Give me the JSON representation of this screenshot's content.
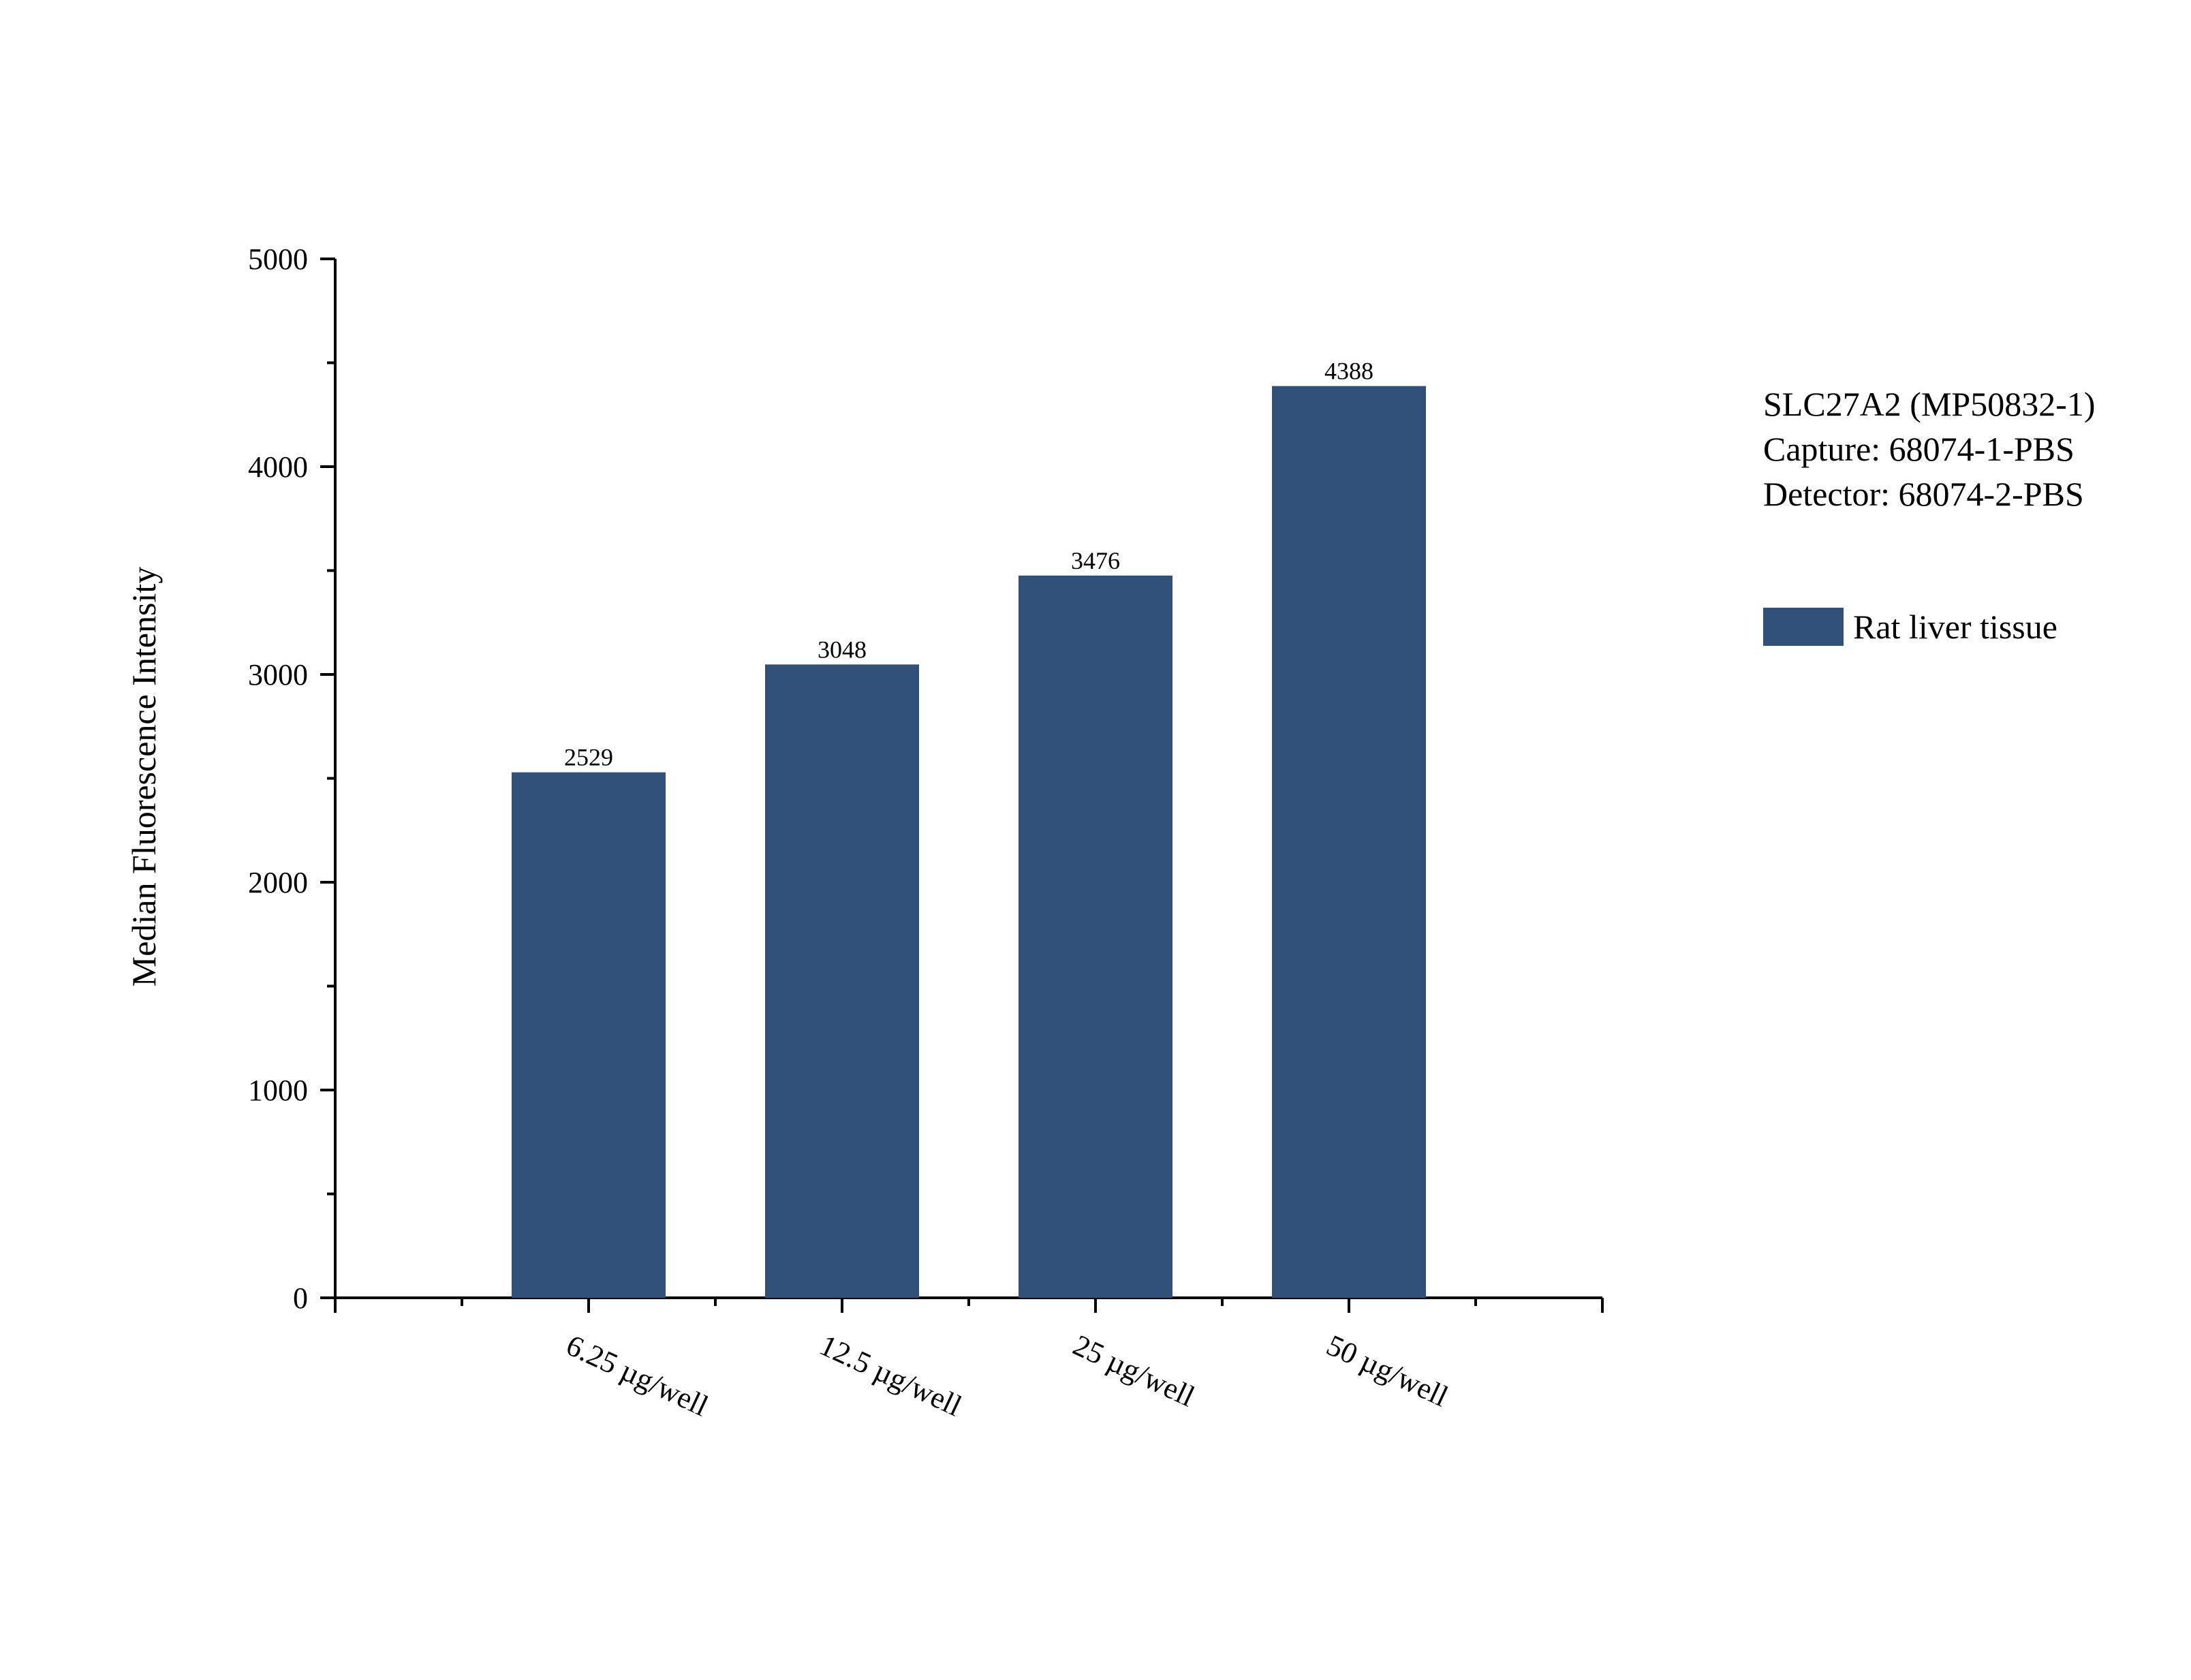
{
  "chart_data": {
    "type": "bar",
    "categories": [
      "6.25 µg/well",
      "12.5 µg/well",
      "25 µg/well",
      "50 µg/well"
    ],
    "series": [
      {
        "name": "Rat liver tissue",
        "values": [
          2529,
          3048,
          3476,
          4388
        ],
        "color": "#30507a"
      }
    ],
    "data_labels": [
      "2529",
      "3048",
      "3476",
      "4388"
    ],
    "title": "",
    "xlabel": "",
    "ylabel": "Median Fluorescence Intensity",
    "ylim": [
      0,
      5000
    ],
    "yticks": [
      0,
      1000,
      2000,
      3000,
      4000,
      5000
    ],
    "grid": false,
    "legend_position": "right",
    "annotation_lines": [
      "SLC27A2 (MP50832-1)",
      "Capture: 68074-1-PBS",
      "Detector: 68074-2-PBS"
    ]
  }
}
